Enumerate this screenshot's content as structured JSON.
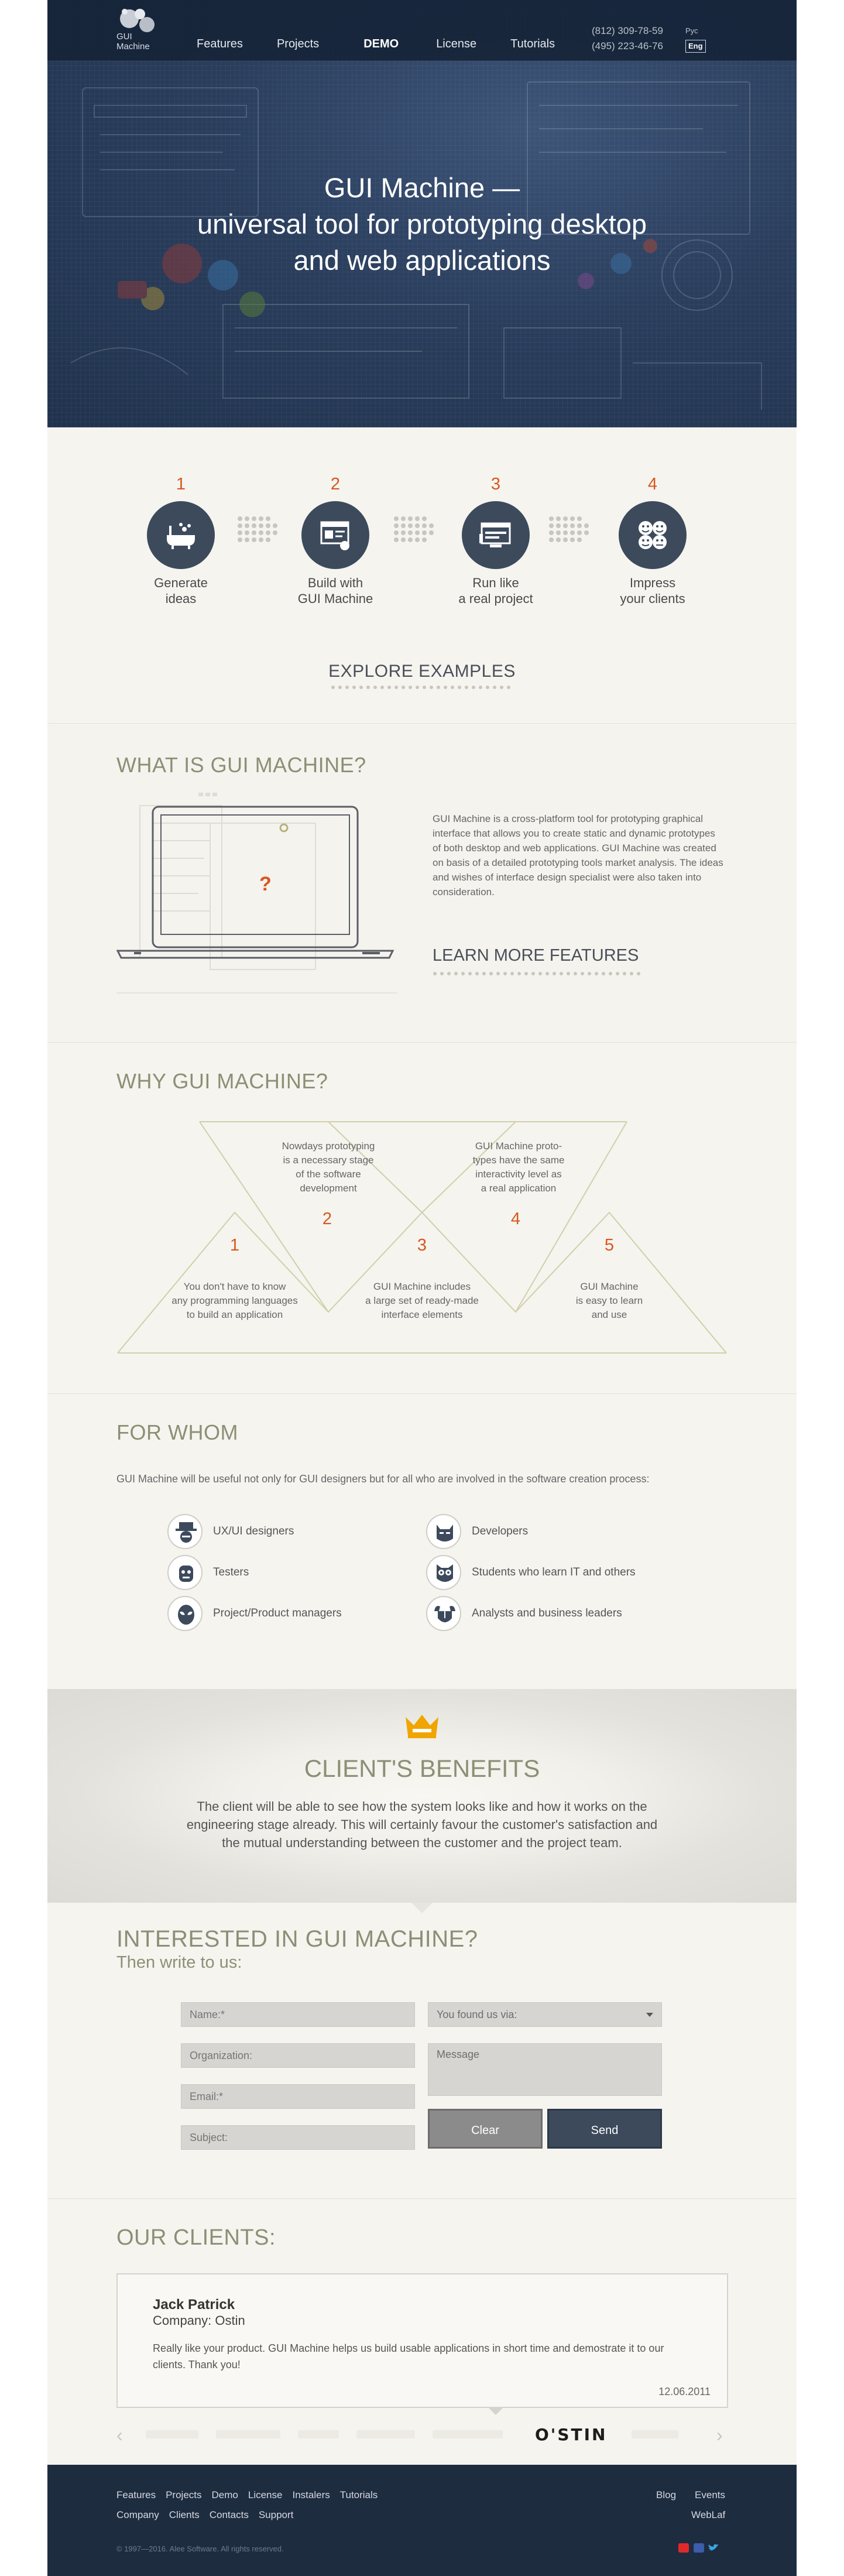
{
  "header": {
    "logo_text_line1": "GUI",
    "logo_text_line2": "Machine",
    "nav": [
      "Features",
      "Projects",
      "DEMO",
      "License",
      "Tutorials"
    ],
    "phone1": "(812) 309-78-59",
    "phone2": "(495) 223-46-76",
    "lang_ru": "Рус",
    "lang_en": "Eng"
  },
  "hero": {
    "line1": "GUI Machine —",
    "line2": "universal tool for prototyping desktop",
    "line3": "and web applications"
  },
  "steps": [
    {
      "num": "1",
      "line1": "Generate",
      "line2": "ideas",
      "icon": "bathtub-icon"
    },
    {
      "num": "2",
      "line1": "Build with",
      "line2": "GUI Machine",
      "icon": "builder-icon"
    },
    {
      "num": "3",
      "line1": "Run like",
      "line2": "a real project",
      "icon": "run-window-icon"
    },
    {
      "num": "4",
      "line1": "Impress",
      "line2": "your clients",
      "icon": "smiley-faces-icon"
    }
  ],
  "explore": "EXPLORE EXAMPLES",
  "what": {
    "title": "WHAT IS GUI MACHINE?",
    "text": "GUI Machine is a cross-platform tool for prototyping graphical interface that allows you to create static and dynamic prototypes of both desktop and web applica­tions. GUI Machine was created on basis of a detailed prototyping tools market analysis. The ideas and wishes of interface design specialist were also taken into consideration.",
    "question_mark": "?",
    "learn_more": "LEARN MORE FEATURES"
  },
  "why": {
    "title": "WHY GUI MACHINE?",
    "items": [
      {
        "num": "1",
        "lines": [
          "You don't have to know",
          "any programming languages",
          "to build an application"
        ]
      },
      {
        "num": "2",
        "lines": [
          "Nowdays prototyping",
          "is a necessary stage",
          "of the software",
          "development"
        ]
      },
      {
        "num": "3",
        "lines": [
          "GUI Machine includes",
          "a large set of ready-made",
          "interface elements"
        ]
      },
      {
        "num": "4",
        "lines": [
          "GUI Machine proto-",
          "types have the same",
          "interactivity level as",
          "a real application"
        ]
      },
      {
        "num": "5",
        "lines": [
          "GUI Machine",
          "is easy to learn",
          "and use"
        ]
      }
    ]
  },
  "whom": {
    "title": "FOR WHOM",
    "intro": "GUI Machine will be useful not only for GUI designers but for all who are involved in the software creation process:",
    "roles": [
      {
        "label": "UX/UI designers",
        "icon": "hat-face-icon"
      },
      {
        "label": "Developers",
        "icon": "batman-icon"
      },
      {
        "label": "Testers",
        "icon": "robot-icon"
      },
      {
        "label": "Students who learn IT and others",
        "icon": "owl-icon"
      },
      {
        "label": "Project/Product managers",
        "icon": "spiderman-icon"
      },
      {
        "label": "Analysts and business leaders",
        "icon": "viking-icon"
      }
    ]
  },
  "benefits": {
    "title": "CLIENT'S BENEFITS",
    "text": "The client will be able to see how the system looks like and how it works on the engineering stage already. This will certainly favour the customer's satisfaction and the mutual understanding between the customer and the project team."
  },
  "contact": {
    "title": "INTERESTED IN GUI MACHINE?",
    "subtitle": "Then write to us:",
    "name_placeholder": "Name:*",
    "organization_placeholder": "Organization:",
    "email_placeholder": "Email:*",
    "subject_placeholder": "Subject:",
    "found_via": "You found us via:",
    "message_placeholder": "Message",
    "clear": "Clear",
    "send": "Send"
  },
  "clients": {
    "title": "OUR CLIENTS:",
    "name": "Jack Patrick",
    "company": "Company: Ostin",
    "text": "Really like your product. GUI Machine helps us build usable applications in short time and demostrate it to our clients. Thank you!",
    "date": "12.06.2011",
    "logo": "O'STIN",
    "prev": "‹",
    "next": "›"
  },
  "footer": {
    "nav_row1": [
      "Features",
      "Projects",
      "Demo",
      "License",
      "Instalers",
      "Tutorials"
    ],
    "nav_row2": [
      "Company",
      "Clients",
      "Contacts",
      "Support"
    ],
    "right_row1": [
      "Blog",
      "Events"
    ],
    "right_row2": [
      "WebLaf"
    ],
    "copyright": "© 1997—2016. Alee Software. All rights reserved.",
    "social_colors": {
      "youtube": "#e02a2a",
      "facebook": "#3b5dab",
      "twitter": "#3aa6e0"
    }
  }
}
